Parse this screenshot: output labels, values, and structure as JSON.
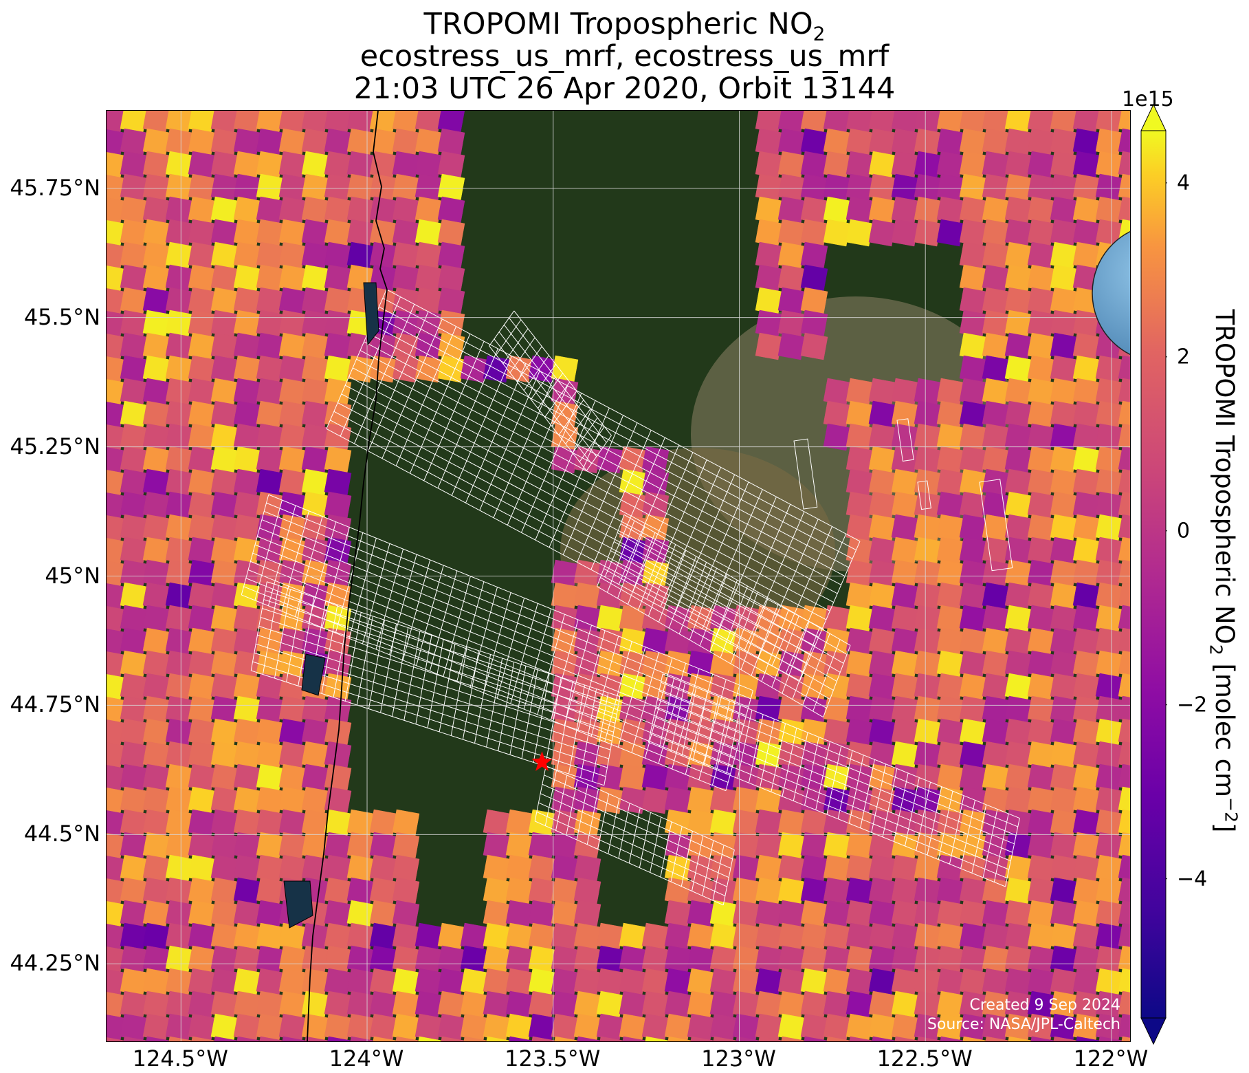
{
  "title": {
    "line1_main": "TROPOMI Tropospheric NO",
    "line1_sub": "2",
    "line2": "ecostress_us_mrf, ecostress_us_mrf",
    "line3": "21:03 UTC 26 Apr 2020, Orbit 13144"
  },
  "axes": {
    "x_ticks": [
      "124.5°W",
      "124°W",
      "123.5°W",
      "123°W",
      "122.5°W",
      "122°W"
    ],
    "y_ticks": [
      "45.75°N",
      "45.5°N",
      "45.25°N",
      "45°N",
      "44.75°N",
      "44.5°N",
      "44.25°N"
    ],
    "lon_range": [
      -124.7,
      -121.95
    ],
    "lat_range": [
      44.1,
      45.9
    ]
  },
  "colorbar": {
    "exponent": "1e15",
    "label_main": "TROPOMI Tropospheric NO",
    "label_sub": "2",
    "label_unit": " [molec cm",
    "label_exp": "−2",
    "label_close": "]",
    "ticks": [
      "4",
      "2",
      "0",
      "−2",
      "−4"
    ],
    "tick_values": [
      4,
      2,
      0,
      -2,
      -4
    ],
    "range": [
      -5.6,
      4.6
    ],
    "colormap": "plasma",
    "extend": "both"
  },
  "credits": {
    "created": "Created 9 Sep 2024",
    "source": "Source: NASA/JPL-Caltech"
  },
  "marker": {
    "name": "red-star",
    "lon": -123.53,
    "lat": 44.64,
    "color": "#ff0000"
  },
  "inset": {
    "name": "globe-locator"
  },
  "colors": {
    "land_dark": "#22391a",
    "land_urban": "#6b6a4e",
    "water": "#163247",
    "grid": "#d8d8d8",
    "footprint_outline": "#ffffff",
    "coastline": "#000000"
  }
}
